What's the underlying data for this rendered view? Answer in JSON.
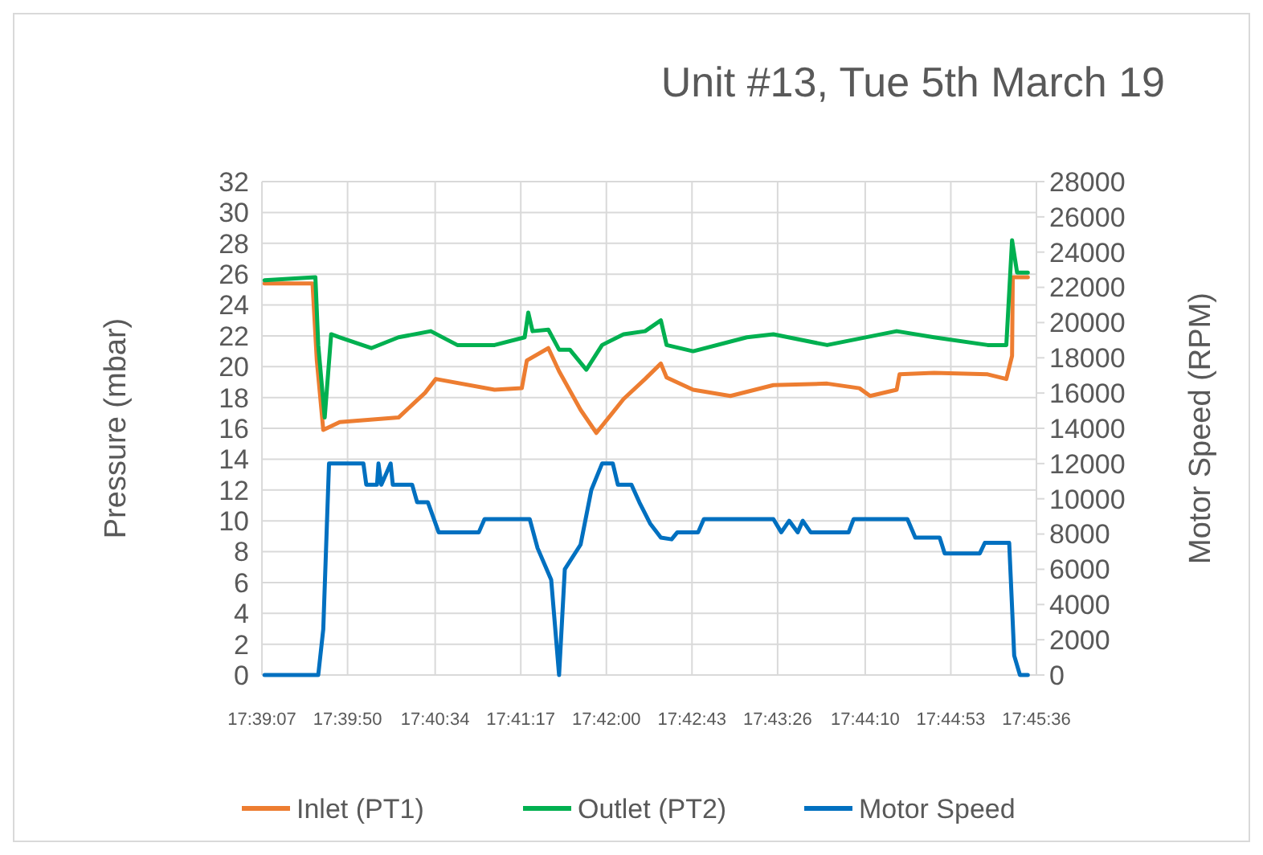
{
  "chart_data": {
    "type": "line",
    "title": "Unit #13, Tue 5th March 19",
    "ylabel": "Pressure (mbar)",
    "y2label": "Motor Speed (RPM)",
    "xlim": [
      17.65194,
      17.76
    ],
    "xticks": [
      {
        "value": 17.651944,
        "label": "17:39:07"
      },
      {
        "value": 17.663889,
        "label": "17:39:50"
      },
      {
        "value": 17.676111,
        "label": "17:40:34"
      },
      {
        "value": 17.688056,
        "label": "17:41:17"
      },
      {
        "value": 17.7,
        "label": "17:42:00"
      },
      {
        "value": 17.711944,
        "label": "17:42:43"
      },
      {
        "value": 17.723889,
        "label": "17:43:26"
      },
      {
        "value": 17.736111,
        "label": "17:44:10"
      },
      {
        "value": 17.748056,
        "label": "17:44:53"
      },
      {
        "value": 17.76,
        "label": "17:45:36"
      }
    ],
    "ylim": [
      0,
      32
    ],
    "yticks": [
      0,
      2,
      4,
      6,
      8,
      10,
      12,
      14,
      16,
      18,
      20,
      22,
      24,
      26,
      28,
      30,
      32
    ],
    "y2lim": [
      0,
      28000
    ],
    "y2ticks": [
      0,
      2000,
      4000,
      6000,
      8000,
      10000,
      12000,
      14000,
      16000,
      18000,
      20000,
      22000,
      24000,
      26000,
      28000
    ],
    "grid": true,
    "legend": "bottom",
    "marker": "none",
    "line_style": "solid",
    "series": [
      {
        "name": "Inlet (PT1)",
        "color": "#ed7d31",
        "x": [
          17.6523,
          17.659,
          17.6596,
          17.6605,
          17.6628,
          17.671,
          17.6747,
          17.6762,
          17.6844,
          17.6882,
          17.6889,
          17.6919,
          17.6934,
          17.6964,
          17.6986,
          17.7024,
          17.7054,
          17.7076,
          17.7084,
          17.7121,
          17.7173,
          17.7233,
          17.7308,
          17.7353,
          17.7368,
          17.7405,
          17.7409,
          17.7457,
          17.7532,
          17.7558,
          17.7566,
          17.7567,
          17.7588
        ],
        "values": [
          25.4,
          25.4,
          20.4,
          15.9,
          16.4,
          16.7,
          18.3,
          19.2,
          18.5,
          18.6,
          20.4,
          21.2,
          19.7,
          17.2,
          15.7,
          17.9,
          19.2,
          20.2,
          19.3,
          18.5,
          18.1,
          18.8,
          18.9,
          18.6,
          18.1,
          18.5,
          19.5,
          19.6,
          19.5,
          19.2,
          20.7,
          25.8,
          25.8
        ]
      },
      {
        "name": "Outlet (PT2)",
        "color": "#00b050",
        "x": [
          17.6523,
          17.6594,
          17.6598,
          17.6607,
          17.6616,
          17.6628,
          17.6672,
          17.671,
          17.6755,
          17.6792,
          17.6844,
          17.6886,
          17.6891,
          17.6897,
          17.6919,
          17.6934,
          17.6949,
          17.6972,
          17.6994,
          17.7024,
          17.7054,
          17.7076,
          17.7084,
          17.7121,
          17.7196,
          17.7233,
          17.7308,
          17.7405,
          17.7457,
          17.7532,
          17.7558,
          17.7566,
          17.7573,
          17.7588
        ],
        "values": [
          25.6,
          25.8,
          21.4,
          16.7,
          22.1,
          21.9,
          21.2,
          21.9,
          22.3,
          21.4,
          21.4,
          21.9,
          23.5,
          22.3,
          22.4,
          21.1,
          21.1,
          19.8,
          21.4,
          22.1,
          22.3,
          23.0,
          21.4,
          21.0,
          21.9,
          22.1,
          21.4,
          22.3,
          21.9,
          21.4,
          21.4,
          28.2,
          26.1,
          26.1
        ]
      },
      {
        "name": "Motor Speed",
        "color": "#0070c0",
        "axis": "y2",
        "x": [
          17.6523,
          17.6598,
          17.6605,
          17.6613,
          17.6661,
          17.6665,
          17.668,
          17.6682,
          17.6686,
          17.6699,
          17.6702,
          17.6729,
          17.6736,
          17.6751,
          17.6766,
          17.6822,
          17.683,
          17.6893,
          17.6904,
          17.6923,
          17.6934,
          17.6942,
          17.6964,
          17.6979,
          17.6994,
          17.7009,
          17.7016,
          17.7035,
          17.7046,
          17.7061,
          17.7076,
          17.7091,
          17.7099,
          17.7128,
          17.7136,
          17.7233,
          17.7244,
          17.7255,
          17.7267,
          17.7274,
          17.7285,
          17.7338,
          17.7345,
          17.742,
          17.7431,
          17.7465,
          17.7472,
          17.7521,
          17.7528,
          17.7562,
          17.7569,
          17.7577,
          17.7588
        ],
        "values": [
          0,
          0,
          2600,
          12000,
          12000,
          10800,
          10800,
          12000,
          10800,
          12000,
          10800,
          10800,
          9800,
          9800,
          8100,
          8100,
          8850,
          8850,
          7200,
          5400,
          0,
          6000,
          7400,
          10500,
          12000,
          12000,
          10800,
          10800,
          9800,
          8600,
          7800,
          7700,
          8100,
          8100,
          8850,
          8850,
          8100,
          8750,
          8100,
          8750,
          8100,
          8100,
          8850,
          8850,
          7800,
          7800,
          6900,
          6900,
          7500,
          7500,
          1100,
          0,
          0
        ]
      }
    ]
  }
}
